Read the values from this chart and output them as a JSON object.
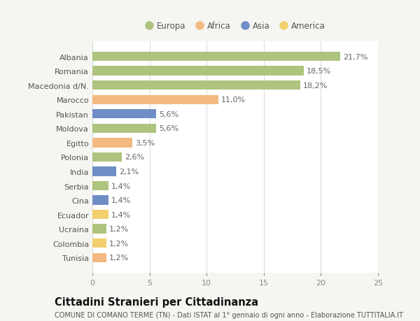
{
  "countries": [
    "Albania",
    "Romania",
    "Macedonia d/N.",
    "Marocco",
    "Pakistan",
    "Moldova",
    "Egitto",
    "Polonia",
    "India",
    "Serbia",
    "Cina",
    "Ecuador",
    "Ucraina",
    "Colombia",
    "Tunisia"
  ],
  "values": [
    21.7,
    18.5,
    18.2,
    11.0,
    5.6,
    5.6,
    3.5,
    2.6,
    2.1,
    1.4,
    1.4,
    1.4,
    1.2,
    1.2,
    1.2
  ],
  "continents": [
    "Europa",
    "Europa",
    "Europa",
    "Africa",
    "Asia",
    "Europa",
    "Africa",
    "Europa",
    "Asia",
    "Europa",
    "Asia",
    "America",
    "Europa",
    "America",
    "Africa"
  ],
  "continent_colors": {
    "Europa": "#aec47e",
    "Africa": "#f2b980",
    "Asia": "#6f8ec7",
    "America": "#f2d06e"
  },
  "legend_order": [
    "Europa",
    "Africa",
    "Asia",
    "America"
  ],
  "title": "Cittadini Stranieri per Cittadinanza",
  "subtitle": "COMUNE DI COMANO TERME (TN) - Dati ISTAT al 1° gennaio di ogni anno - Elaborazione TUTTITALIA.IT",
  "xlim": [
    0,
    25
  ],
  "xticks": [
    0,
    5,
    10,
    15,
    20,
    25
  ],
  "background_color": "#f5f5f2",
  "bar_background": "#ffffff",
  "grid_color": "#d8d8d8",
  "label_fontsize": 8,
  "value_fontsize": 8,
  "title_fontsize": 10.5,
  "subtitle_fontsize": 7
}
